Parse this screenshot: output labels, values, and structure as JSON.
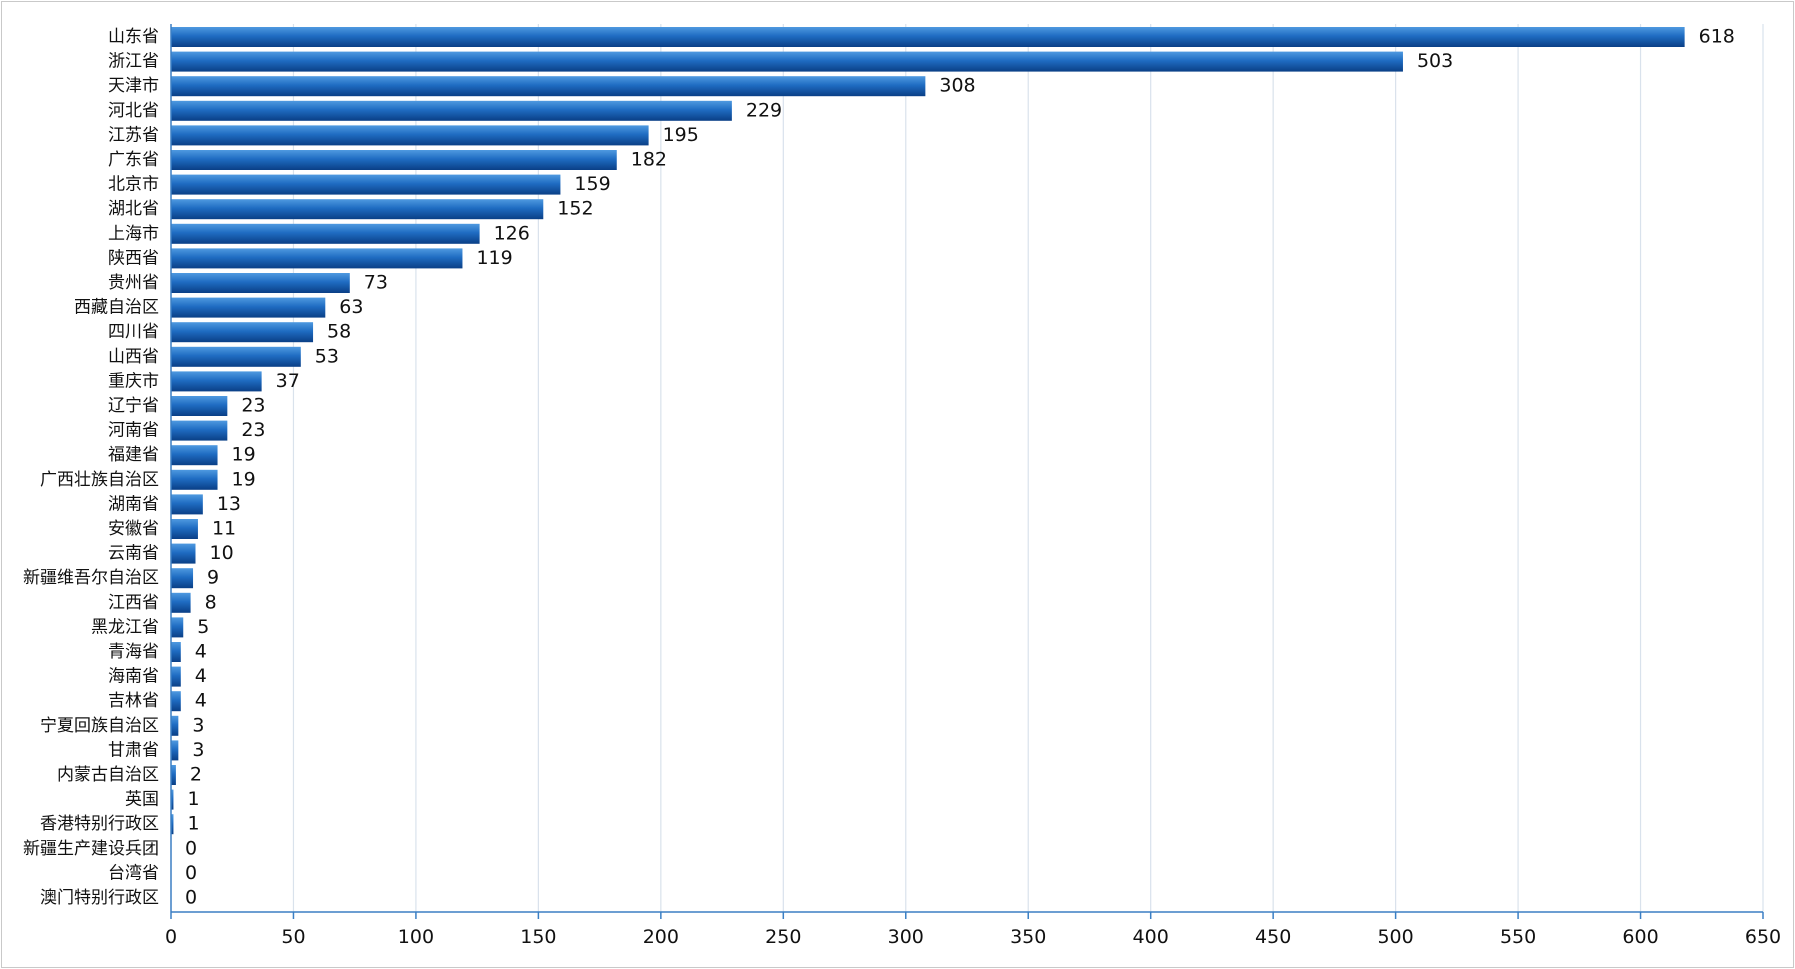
{
  "chart_data": {
    "type": "bar",
    "orientation": "horizontal",
    "title": "",
    "xlabel": "",
    "ylabel": "",
    "xlim": [
      0,
      650
    ],
    "ticks": [
      0,
      50,
      100,
      150,
      200,
      250,
      300,
      350,
      400,
      450,
      500,
      550,
      600,
      650
    ],
    "grid": true,
    "legend": "none",
    "bar_color_dark": "#0a3f86",
    "bar_color_light": "#4f9ae0",
    "axis_color": "#3b7fc4",
    "categories": [
      "山东省",
      "浙江省",
      "天津市",
      "河北省",
      "江苏省",
      "广东省",
      "北京市",
      "湖北省",
      "上海市",
      "陕西省",
      "贵州省",
      "西藏自治区",
      "四川省",
      "山西省",
      "重庆市",
      "辽宁省",
      "河南省",
      "福建省",
      "广西壮族自治区",
      "湖南省",
      "安徽省",
      "云南省",
      "新疆维吾尔自治区",
      "江西省",
      "黑龙江省",
      "青海省",
      "海南省",
      "吉林省",
      "宁夏回族自治区",
      "甘肃省",
      "内蒙古自治区",
      "英国",
      "香港特别行政区",
      "新疆生产建设兵团",
      "台湾省",
      "澳门特别行政区"
    ],
    "values": [
      618,
      503,
      308,
      229,
      195,
      182,
      159,
      152,
      126,
      119,
      73,
      63,
      58,
      53,
      37,
      23,
      23,
      19,
      19,
      13,
      11,
      10,
      9,
      8,
      5,
      4,
      4,
      4,
      3,
      3,
      2,
      1,
      1,
      0,
      0,
      0
    ]
  }
}
